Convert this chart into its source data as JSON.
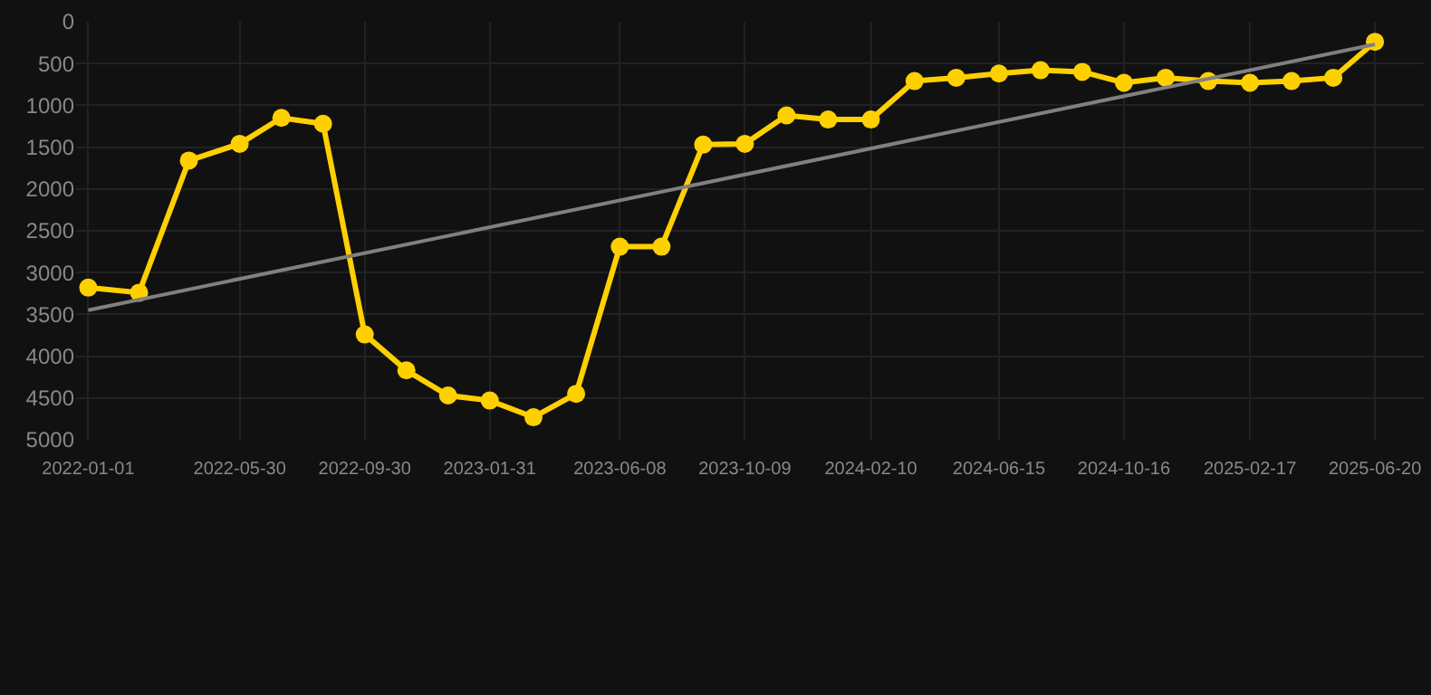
{
  "chart_data": {
    "type": "line",
    "x": [
      "2022-01-01",
      "2022-02-20",
      "2022-04-10",
      "2022-05-30",
      "2022-07-10",
      "2022-08-20",
      "2022-09-30",
      "2022-11-10",
      "2022-12-21",
      "2023-01-31",
      "2023-03-15",
      "2023-04-26",
      "2023-06-08",
      "2023-07-19",
      "2023-08-29",
      "2023-10-09",
      "2023-11-19",
      "2023-12-30",
      "2024-02-10",
      "2024-03-24",
      "2024-05-04",
      "2024-06-15",
      "2024-07-26",
      "2024-09-05",
      "2024-10-16",
      "2024-11-26",
      "2025-01-07",
      "2025-02-17",
      "2025-03-30",
      "2025-05-10",
      "2025-06-20"
    ],
    "series": [
      {
        "color": "#ffd000",
        "marker": "circle",
        "values": [
          3180,
          3240,
          1660,
          1460,
          1150,
          1220,
          3740,
          4170,
          4470,
          4530,
          4730,
          4450,
          2690,
          2690,
          1470,
          1460,
          1120,
          1170,
          1170,
          710,
          670,
          620,
          580,
          600,
          730,
          670,
          710,
          730,
          710,
          670,
          240
        ]
      },
      {
        "type": "line",
        "color": "#808080",
        "marker": "none",
        "x": [
          "2022-01-01",
          "2025-06-20"
        ],
        "values": [
          3450,
          270
        ]
      }
    ],
    "xlim": [
      "2021-12-20",
      "2025-08-07"
    ],
    "xticks": [
      "2022-01-01",
      "2022-05-30",
      "2022-09-30",
      "2023-01-31",
      "2023-06-08",
      "2023-10-09",
      "2024-02-10",
      "2024-06-15",
      "2024-10-16",
      "2025-02-17",
      "2025-06-20"
    ],
    "ylim": [
      5000,
      0
    ],
    "yticks": [
      0,
      500,
      1000,
      1500,
      2000,
      2500,
      3000,
      3500,
      4000,
      4500,
      5000
    ],
    "grid": true
  }
}
